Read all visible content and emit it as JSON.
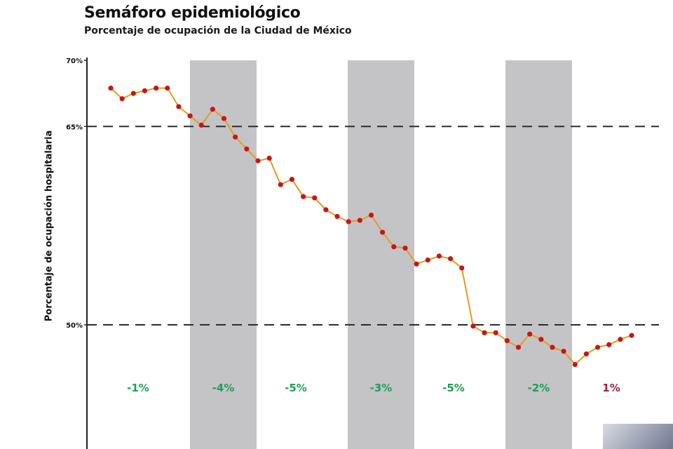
{
  "chart_data": {
    "type": "line",
    "title": "Semáforo epidemiológico",
    "subtitle": "Porcentaje de ocupación de la Ciudad de México",
    "ylabel": "Porcentaje de ocupación hospitalaria",
    "yticks": [
      {
        "value": 70,
        "label": "70%"
      },
      {
        "value": 65,
        "label": "65%"
      },
      {
        "value": 50,
        "label": "50%"
      }
    ],
    "ylim": [
      44,
      72
    ],
    "reference_lines": [
      65,
      50
    ],
    "shaded_periods": [
      2,
      4,
      6
    ],
    "periods": [
      {
        "label": "-1%",
        "color": "#1e9e57"
      },
      {
        "label": "-4%",
        "color": "#1e9e57"
      },
      {
        "label": "-5%",
        "color": "#1e9e57"
      },
      {
        "label": "-3%",
        "color": "#1e9e57"
      },
      {
        "label": "-5%",
        "color": "#1e9e57"
      },
      {
        "label": "-2%",
        "color": "#1e9e57"
      },
      {
        "label": "1%",
        "color": "#a3203d"
      }
    ],
    "series": [
      {
        "line_color": "#e59a1c",
        "marker_color": "#c4161c",
        "values": [
          67.9,
          67.1,
          67.5,
          67.7,
          67.9,
          67.9,
          66.5,
          65.8,
          65.1,
          66.3,
          65.6,
          64.2,
          63.3,
          62.4,
          62.6,
          60.6,
          61.0,
          59.7,
          59.6,
          58.7,
          58.2,
          57.8,
          57.9,
          58.3,
          57.0,
          55.9,
          55.8,
          54.6,
          54.9,
          55.2,
          55.0,
          54.3,
          49.9,
          49.4,
          49.4,
          48.8,
          48.3,
          49.3,
          48.9,
          48.3,
          48.0,
          47.0,
          47.8,
          48.3,
          48.5,
          48.9,
          49.2
        ]
      }
    ],
    "grid": false,
    "legend": "none"
  }
}
